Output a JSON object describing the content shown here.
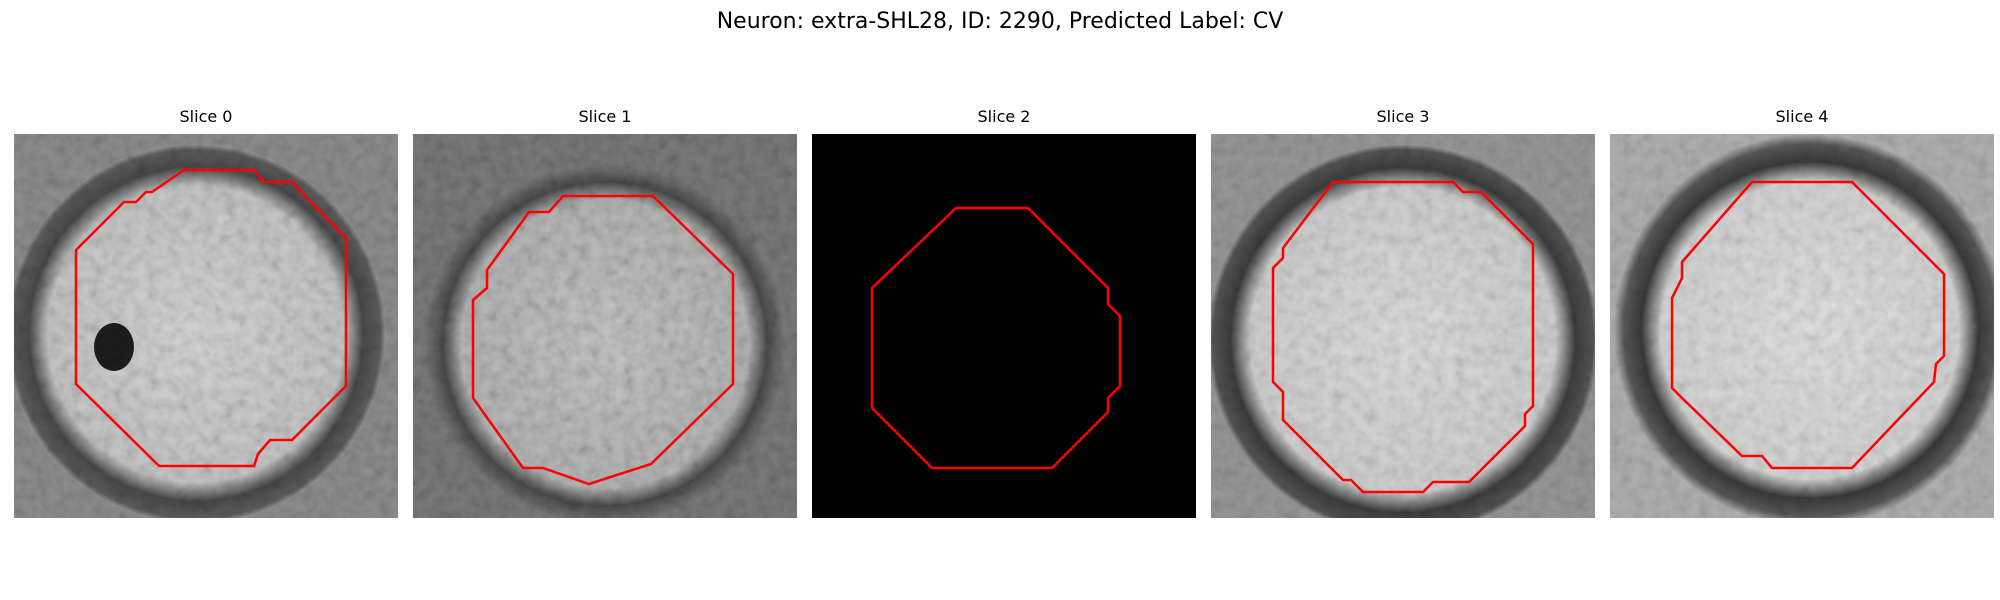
{
  "figure": {
    "title": "Neuron: extra-SHL28, ID: 2290, Predicted Label: CV"
  },
  "outline_color": "#ff0000",
  "panels": [
    {
      "title": "Slice 0",
      "image": "grayscale EM patch with a bright round cell body, dark membrane ring, and a dark spot on the left side",
      "has_image": true
    },
    {
      "title": "Slice 1",
      "image": "grayscale EM patch with a bright round cell body and speckled texture",
      "has_image": true
    },
    {
      "title": "Slice 2",
      "image": "fully black patch",
      "has_image": false
    },
    {
      "title": "Slice 3",
      "image": "grayscale EM patch with a bright round cell body and dark surrounding ring",
      "has_image": true
    },
    {
      "title": "Slice 4",
      "image": "grayscale EM patch with a bright round cell body, dark ring and lighter surroundings",
      "has_image": true
    }
  ]
}
